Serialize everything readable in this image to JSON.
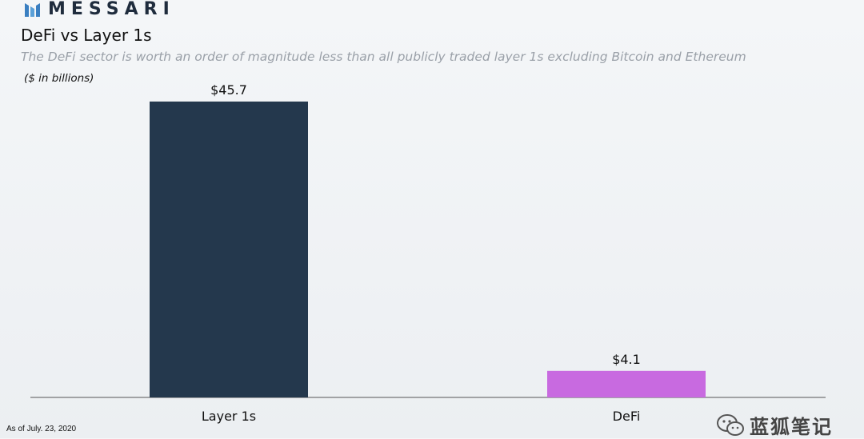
{
  "brand": {
    "name": "MESSARI"
  },
  "header": {
    "title": "DeFi vs Layer 1s",
    "subtitle": "The DeFi sector is worth an order of magnitude less than all publicly traded layer 1s excluding Bitcoin and Ethereum",
    "unit": "($ in billions)"
  },
  "footnote": "As of July. 23, 2020",
  "watermark": {
    "text": "蓝狐笔记"
  },
  "chart_data": {
    "type": "bar",
    "categories": [
      "Layer 1s",
      "DeFi"
    ],
    "values": [
      45.7,
      4.1
    ],
    "value_labels": [
      "$45.7",
      "$4.1"
    ],
    "colors": [
      "#24384d",
      "#c86ae0"
    ],
    "ylim": [
      0,
      45.7
    ],
    "grid": false,
    "legend": "none"
  }
}
